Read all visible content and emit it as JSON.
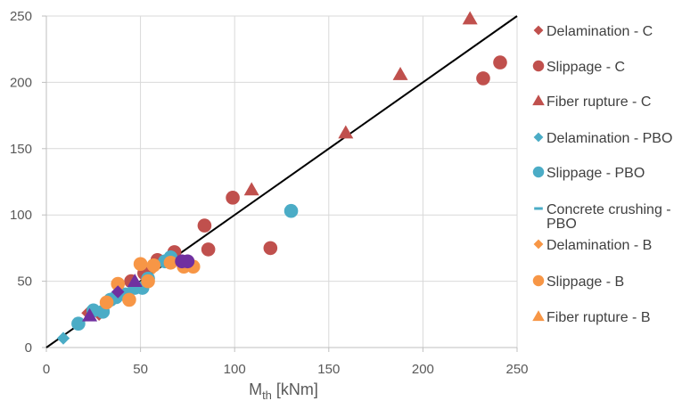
{
  "chart_data": {
    "type": "scatter",
    "title": "",
    "xlabel": "M",
    "xlabel_sub": "th",
    "xlabel_unit": "[kNm]",
    "ylabel": "",
    "xlim": [
      0,
      250
    ],
    "ylim": [
      0,
      250
    ],
    "xticks": [
      0,
      50,
      100,
      150,
      200,
      250
    ],
    "yticks": [
      0,
      50,
      100,
      150,
      200,
      250
    ],
    "grid": true,
    "legend_position": "right",
    "reference_line": {
      "name": "y = x",
      "x": [
        0,
        250
      ],
      "y": [
        0,
        250
      ],
      "color": "#000000"
    },
    "series": [
      {
        "name": "Delamination - C",
        "marker": "diamond",
        "color": "#C0504D",
        "points": [
          [
            22,
            26
          ],
          [
            28,
            25
          ]
        ]
      },
      {
        "name": "Slippage - C",
        "marker": "circle",
        "color": "#C0504D",
        "points": [
          [
            59,
            66
          ],
          [
            68,
            72
          ],
          [
            84,
            92
          ],
          [
            86,
            74
          ],
          [
            99,
            113
          ],
          [
            119,
            75
          ],
          [
            232,
            203
          ],
          [
            241,
            215
          ],
          [
            45,
            50
          ],
          [
            52,
            56
          ]
        ]
      },
      {
        "name": "Fiber rupture - C",
        "marker": "triangle",
        "color": "#C0504D",
        "points": [
          [
            109,
            119
          ],
          [
            159,
            162
          ],
          [
            188,
            206
          ],
          [
            225,
            248
          ]
        ]
      },
      {
        "name": "Delamination - PBO",
        "marker": "diamond",
        "color": "#4BACC6",
        "points": [
          [
            9,
            7
          ]
        ]
      },
      {
        "name": "Slippage - PBO",
        "marker": "circle",
        "color": "#4BACC6",
        "points": [
          [
            17,
            18
          ],
          [
            25,
            28
          ],
          [
            30,
            27
          ],
          [
            34,
            36
          ],
          [
            37,
            38
          ],
          [
            42,
            40
          ],
          [
            47,
            45
          ],
          [
            51,
            45
          ],
          [
            54,
            52
          ],
          [
            63,
            65
          ],
          [
            66,
            68
          ],
          [
            130,
            103
          ]
        ]
      },
      {
        "name": "Concrete crushing - PBO",
        "marker": "dash",
        "color": "#4BACC6",
        "points": []
      },
      {
        "name": "Delamination - B",
        "marker": "diamond",
        "color": "#F79646",
        "points": [
          [
            57,
            60
          ],
          [
            76,
            63
          ]
        ]
      },
      {
        "name": "Slippage - B",
        "marker": "circle",
        "color": "#F79646",
        "points": [
          [
            32,
            34
          ],
          [
            38,
            48
          ],
          [
            44,
            36
          ],
          [
            50,
            63
          ],
          [
            54,
            50
          ],
          [
            57,
            62
          ],
          [
            66,
            64
          ],
          [
            73,
            61
          ],
          [
            78,
            61
          ]
        ]
      },
      {
        "name": "Fiber rupture - B",
        "marker": "triangle",
        "color": "#F79646",
        "points": []
      },
      {
        "name": "Other - purple",
        "marker": "mixed",
        "color": "#7030A0",
        "show_in_legend": false,
        "points": [
          [
            23,
            24,
            "triangle"
          ],
          [
            38,
            42,
            "diamond"
          ],
          [
            47,
            50,
            "triangle"
          ],
          [
            72,
            65,
            "circle"
          ],
          [
            75,
            65,
            "circle"
          ]
        ]
      }
    ],
    "legend_entries": [
      "Delamination - C",
      "Slippage - C",
      "Fiber rupture - C",
      "Delamination - PBO",
      "Slippage - PBO",
      "Concrete crushing -",
      "PBO",
      "Delamination - B",
      "Slippage - B",
      "Fiber rupture - B"
    ]
  }
}
